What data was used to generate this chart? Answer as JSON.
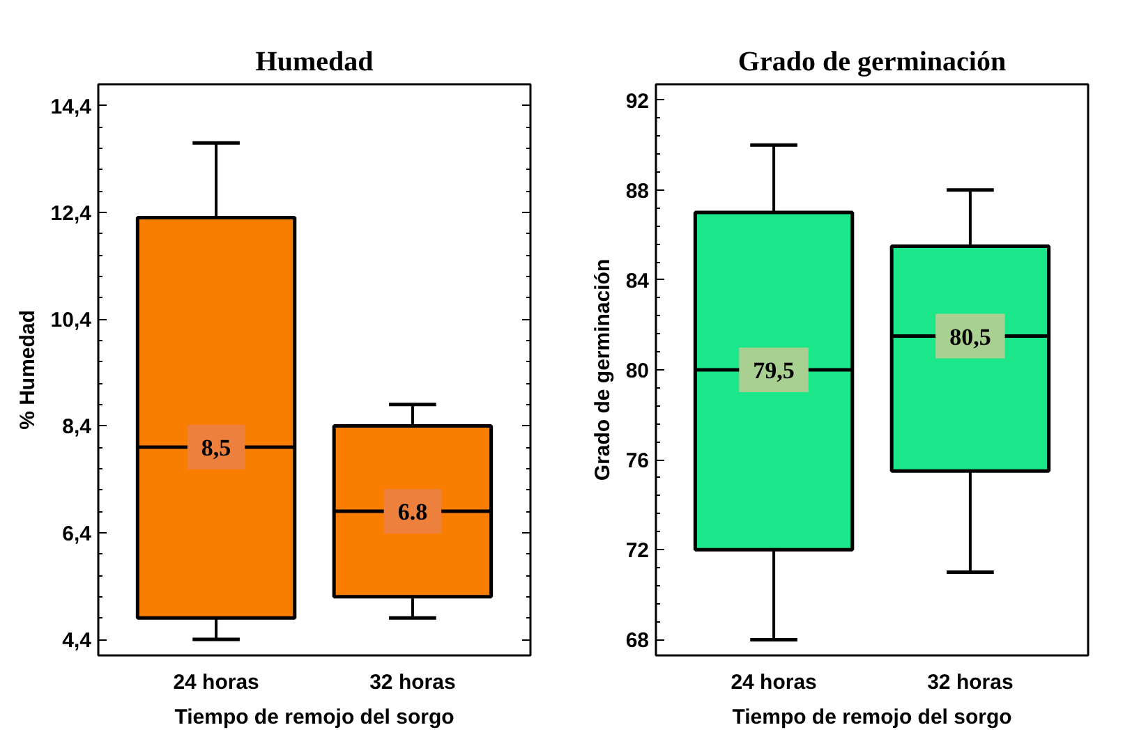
{
  "chart_data": [
    {
      "type": "box",
      "title": "Humedad",
      "xlabel": "Tiempo de remojo del sorgo",
      "ylabel": "% Humedad",
      "categories": [
        "24 horas",
        "32 horas"
      ],
      "series": [
        {
          "color": "#f97e00",
          "boxes": [
            {
              "low": 4.4,
              "q1": 4.8,
              "median": 8.0,
              "q3": 12.3,
              "high": 13.7
            },
            {
              "low": 4.8,
              "q1": 5.2,
              "median": 6.8,
              "q3": 8.4,
              "high": 8.8
            }
          ]
        }
      ],
      "ylim": [
        4.1,
        14.8
      ],
      "yticks": [
        {
          "value": 4.4,
          "label": "4,4"
        },
        {
          "value": 6.4,
          "label": "6,4"
        },
        {
          "value": 8.4,
          "label": "8,4"
        },
        {
          "value": 10.4,
          "label": "10,4"
        },
        {
          "value": 12.4,
          "label": "12,4"
        },
        {
          "value": 14.4,
          "label": "14,4"
        }
      ],
      "annotations": [
        "8,5",
        "6.8"
      ],
      "grid": false
    },
    {
      "type": "box",
      "title": "Grado de germinación",
      "xlabel": "Tiempo de remojo del sorgo",
      "ylabel": "Grado de germinación",
      "categories": [
        "24 horas",
        "32 horas"
      ],
      "series": [
        {
          "color": "#1ce68a",
          "boxes": [
            {
              "low": 68,
              "q1": 72,
              "median": 80,
              "q3": 87,
              "high": 90
            },
            {
              "low": 71,
              "q1": 75.5,
              "median": 81.5,
              "q3": 85.5,
              "high": 88
            }
          ]
        }
      ],
      "ylim": [
        67.3,
        92.7
      ],
      "yticks": [
        68,
        72,
        76,
        80,
        84,
        88,
        92
      ],
      "annotations": [
        "79,5",
        "80,5"
      ],
      "grid": false
    }
  ]
}
